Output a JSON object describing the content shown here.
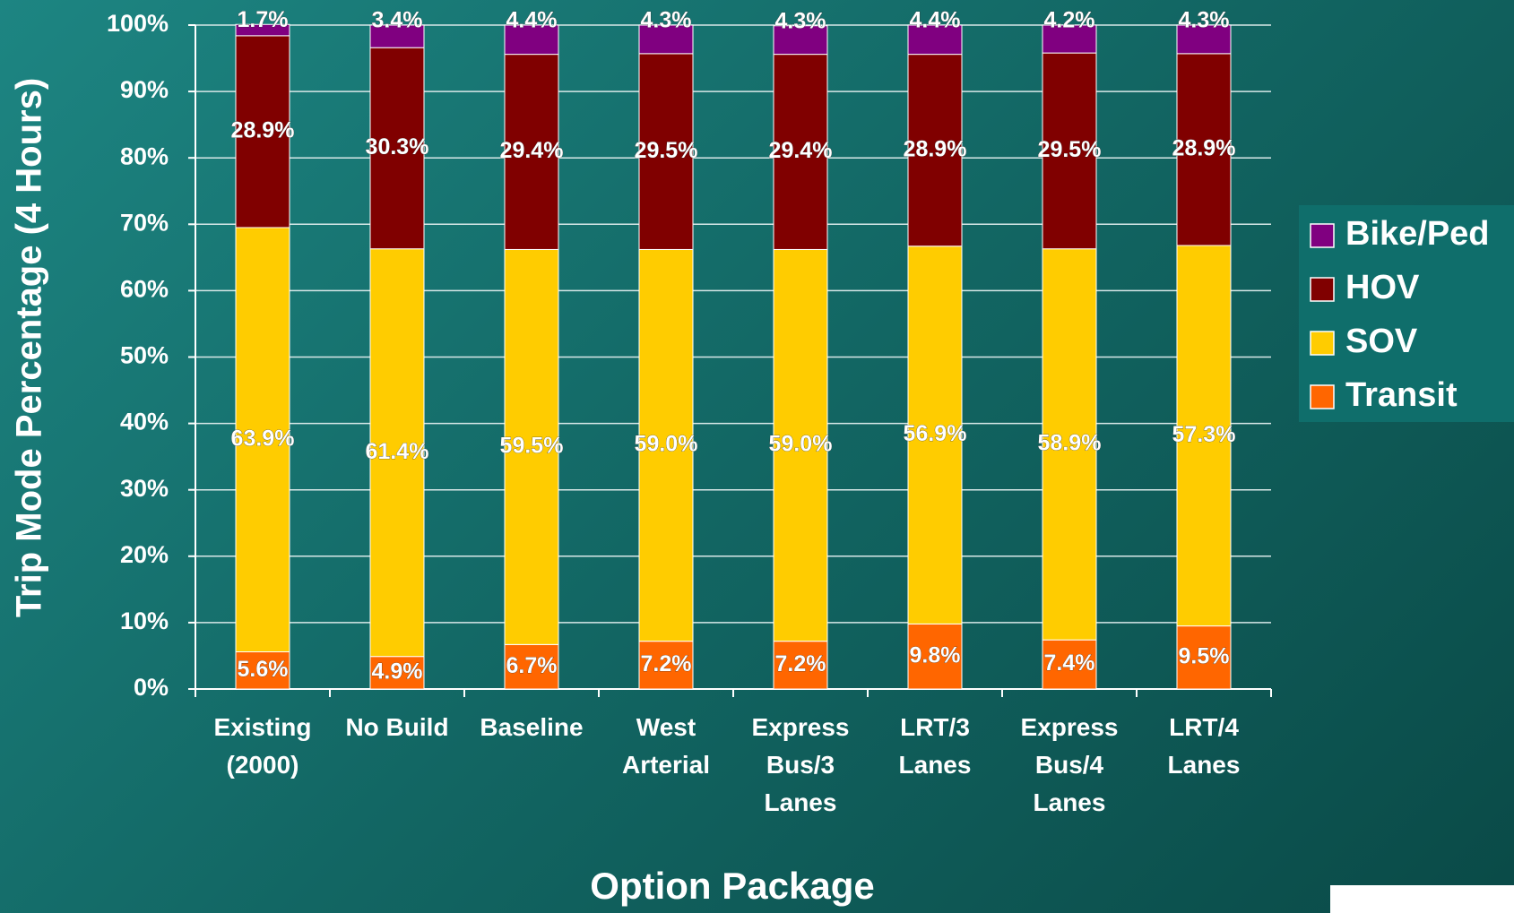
{
  "chart_data": {
    "type": "stacked_bar",
    "x_label": "Option Package",
    "y_label": "Trip Mode Percentage (4 Hours)",
    "categories": [
      "Existing (2000)",
      "No Build",
      "Baseline",
      "West Arterial",
      "Express Bus/3 Lanes",
      "LRT/3 Lanes",
      "Express Bus/4 Lanes",
      "LRT/4 Lanes"
    ],
    "series": [
      {
        "name": "Transit",
        "color": "#ff6600",
        "values": [
          5.6,
          4.9,
          6.7,
          7.2,
          7.2,
          9.8,
          7.4,
          9.5
        ],
        "value_labels": [
          "5.6%",
          "4.9%",
          "6.7%",
          "7.2%",
          "7.2%",
          "9.8%",
          "7.4%",
          "9.5%"
        ]
      },
      {
        "name": "SOV",
        "color": "#ffcc00",
        "values": [
          63.9,
          61.4,
          59.5,
          59.0,
          59.0,
          56.9,
          58.9,
          57.3
        ],
        "value_labels": [
          "63.9%",
          "61.4%",
          "59.5%",
          "59.0%",
          "59.0%",
          "56.9%",
          "58.9%",
          "57.3%"
        ]
      },
      {
        "name": "HOV",
        "color": "#800000",
        "values": [
          28.9,
          30.3,
          29.4,
          29.5,
          29.4,
          28.9,
          29.5,
          28.9
        ],
        "value_labels": [
          "28.9%",
          "30.3%",
          "29.4%",
          "29.5%",
          "29.4%",
          "28.9%",
          "29.5%",
          "28.9%"
        ]
      },
      {
        "name": "Bike/Ped",
        "color": "#800080",
        "values": [
          1.7,
          3.4,
          4.4,
          4.3,
          4.3,
          4.4,
          4.2,
          4.3
        ],
        "value_labels": [
          "1.7%",
          "3.4%",
          "4.4%",
          "4.3%",
          "4.3%",
          "4.4%",
          "4.2%",
          "4.3%"
        ]
      }
    ],
    "ylim": [
      0,
      100
    ],
    "yticks": [
      {
        "value": 0,
        "label": "0%"
      },
      {
        "value": 10,
        "label": "10%"
      },
      {
        "value": 20,
        "label": "20%"
      },
      {
        "value": 30,
        "label": "30%"
      },
      {
        "value": 40,
        "label": "40%"
      },
      {
        "value": 50,
        "label": "50%"
      },
      {
        "value": 60,
        "label": "60%"
      },
      {
        "value": 70,
        "label": "70%"
      },
      {
        "value": 80,
        "label": "80%"
      },
      {
        "value": 90,
        "label": "90%"
      },
      {
        "value": 100,
        "label": "100%"
      }
    ],
    "grid": true,
    "legend": "right"
  }
}
